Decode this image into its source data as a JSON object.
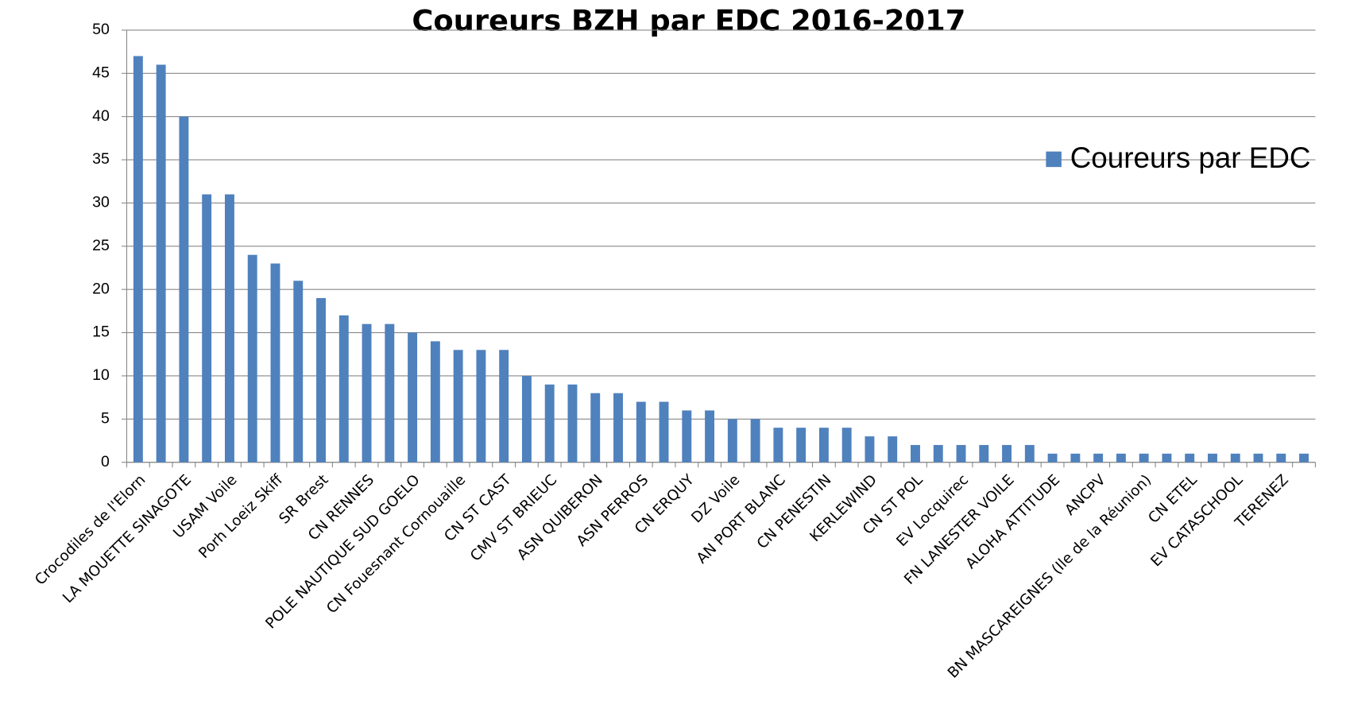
{
  "chart_data": {
    "type": "bar",
    "title": "Coureurs BZH par EDC 2016-2017",
    "categories": [
      "Crocodiles de l'Elorn",
      null,
      "LA MOUETTE SINAGOTE",
      null,
      "USAM Voile",
      null,
      "Porh Loeiz Skiff",
      null,
      "SR Brest",
      null,
      "CN RENNES",
      null,
      "POLE NAUTIQUE SUD GOELO",
      null,
      "CN Fouesnant Cornouaille",
      null,
      "CN ST CAST",
      null,
      "CMV ST BRIEUC",
      null,
      "ASN QUIBERON",
      null,
      "ASN PERROS",
      null,
      "CN ERQUY",
      null,
      "DZ Voile",
      null,
      "AN PORT BLANC",
      null,
      "CN PENESTIN",
      null,
      "KERLEWIND",
      null,
      "CN ST POL",
      null,
      "EV Locquirec",
      null,
      "FN LANESTER VOILE",
      null,
      "ALOHA ATTITUDE",
      null,
      "ANCPV",
      null,
      "BN MASCAREIGNES (Ile de la Réunion)",
      null,
      "CN ETEL",
      null,
      "EV CATASCHOOL",
      null,
      "TERENEZ",
      null
    ],
    "series": [
      {
        "name": "Coureurs par EDC",
        "color": "#4f81bd",
        "values": [
          47,
          46,
          40,
          31,
          31,
          24,
          23,
          21,
          19,
          17,
          16,
          16,
          15,
          14,
          13,
          13,
          13,
          10,
          9,
          9,
          8,
          8,
          7,
          7,
          6,
          6,
          5,
          5,
          4,
          4,
          4,
          4,
          3,
          3,
          2,
          2,
          2,
          2,
          2,
          2,
          1,
          1,
          1,
          1,
          1,
          1,
          1,
          1,
          1,
          1,
          1,
          1
        ]
      }
    ],
    "ylim": [
      0,
      50
    ],
    "yticks": [
      0,
      5,
      10,
      15,
      20,
      25,
      30,
      35,
      40,
      45,
      50
    ],
    "grid": true,
    "legend": "right"
  }
}
